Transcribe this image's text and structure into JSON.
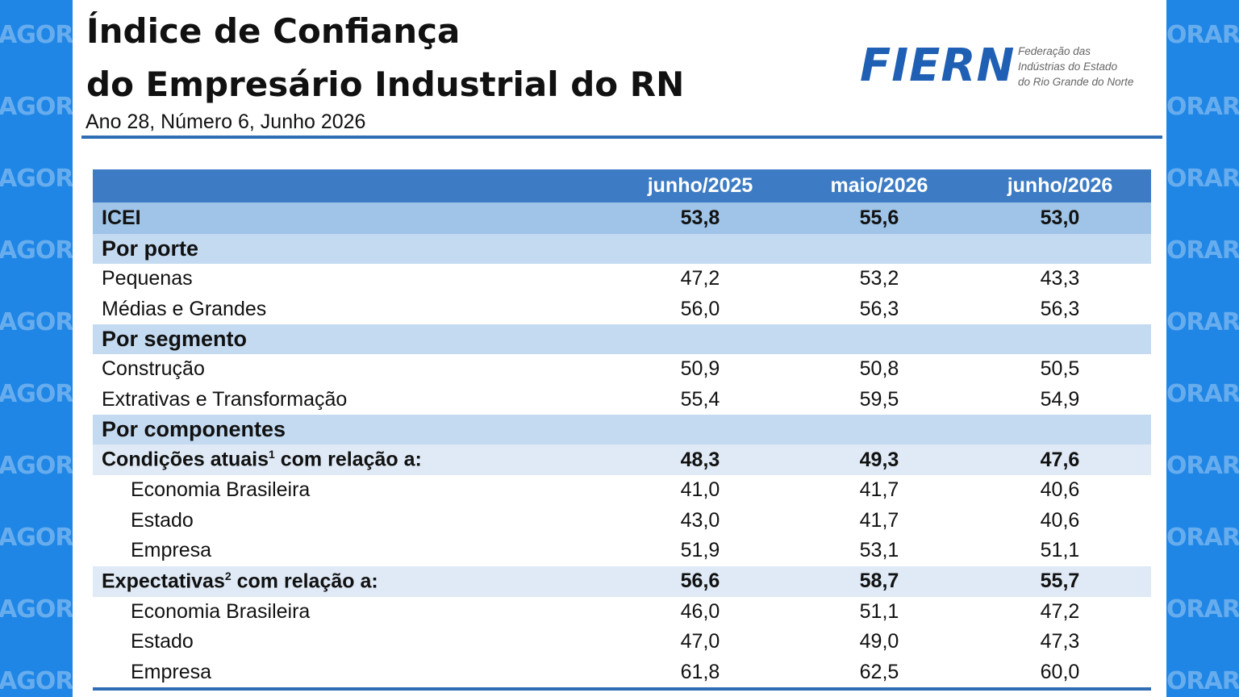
{
  "watermark": {
    "left": "AGORA",
    "right": "ORARI"
  },
  "header": {
    "title_line1": "Índice de Confiança",
    "title_line2": "do Empresário Industrial do RN",
    "subtitle": "Ano 28, Número 6, Junho 2026"
  },
  "logo": {
    "name": "FIERN",
    "sub1": "Federação das",
    "sub2": "Indústrias do Estado",
    "sub3": "do Rio Grande do Norte"
  },
  "table": {
    "columns": [
      "junho/2025",
      "maio/2026",
      "junho/2026"
    ],
    "icei": {
      "label": "ICEI",
      "values": [
        "53,8",
        "55,6",
        "53,0"
      ]
    },
    "porte": {
      "label": "Por porte",
      "rows": [
        {
          "label": "Pequenas",
          "values": [
            "47,2",
            "53,2",
            "43,3"
          ]
        },
        {
          "label": "Médias e Grandes",
          "values": [
            "56,0",
            "56,3",
            "56,3"
          ]
        }
      ]
    },
    "segmento": {
      "label": "Por segmento",
      "rows": [
        {
          "label": "Construção",
          "values": [
            "50,9",
            "50,8",
            "50,5"
          ]
        },
        {
          "label": "Extrativas e Transformação",
          "values": [
            "55,4",
            "59,5",
            "54,9"
          ]
        }
      ]
    },
    "componentes": {
      "label": "Por componentes",
      "condicoes": {
        "label_a": "Condições atuais",
        "sup": "1",
        "label_b": " com relação a:",
        "values": [
          "48,3",
          "49,3",
          "47,6"
        ],
        "rows": [
          {
            "label": "Economia Brasileira",
            "values": [
              "41,0",
              "41,7",
              "40,6"
            ]
          },
          {
            "label": "Estado",
            "values": [
              "43,0",
              "41,7",
              "40,6"
            ]
          },
          {
            "label": "Empresa",
            "values": [
              "51,9",
              "53,1",
              "51,1"
            ]
          }
        ]
      },
      "expectativas": {
        "label_a": "Expectativas",
        "sup": "2",
        "label_b": " com relação a:",
        "values": [
          "56,6",
          "58,7",
          "55,7"
        ],
        "rows": [
          {
            "label": "Economia Brasileira",
            "values": [
              "46,0",
              "51,1",
              "47,2"
            ]
          },
          {
            "label": "Estado",
            "values": [
              "47,0",
              "49,0",
              "47,3"
            ]
          },
          {
            "label": "Empresa",
            "values": [
              "61,8",
              "62,5",
              "60,0"
            ]
          }
        ]
      }
    }
  }
}
